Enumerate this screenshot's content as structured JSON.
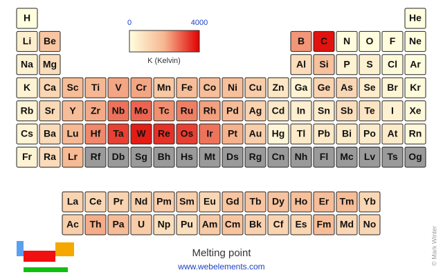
{
  "chart_data": {
    "type": "periodic-heatmap",
    "title": "Melting point",
    "subtitle": "www.webelements.com",
    "credit": "© Mark Winter",
    "colorbar": {
      "lim": [
        0,
        4000
      ],
      "ticks": [
        0,
        4000
      ],
      "label": "K (Kelvin)",
      "colors": [
        "#ffffe0",
        "#f6b690",
        "#e00000"
      ]
    },
    "missing_color": "#9a9a9a",
    "symbols": [
      "H",
      "He",
      "Li",
      "Be",
      "B",
      "C",
      "N",
      "O",
      "F",
      "Ne",
      "Na",
      "Mg",
      "Al",
      "Si",
      "P",
      "S",
      "Cl",
      "Ar",
      "K",
      "Ca",
      "Sc",
      "Ti",
      "V",
      "Cr",
      "Mn",
      "Fe",
      "Co",
      "Ni",
      "Cu",
      "Zn",
      "Ga",
      "Ge",
      "As",
      "Se",
      "Br",
      "Kr",
      "Rb",
      "Sr",
      "Y",
      "Zr",
      "Nb",
      "Mo",
      "Tc",
      "Ru",
      "Rh",
      "Pd",
      "Ag",
      "Cd",
      "In",
      "Sn",
      "Sb",
      "Te",
      "I",
      "Xe",
      "Cs",
      "Ba",
      "La",
      "Ce",
      "Pr",
      "Nd",
      "Pm",
      "Sm",
      "Eu",
      "Gd",
      "Tb",
      "Dy",
      "Ho",
      "Er",
      "Tm",
      "Yb",
      "Lu",
      "Hf",
      "Ta",
      "W",
      "Re",
      "Os",
      "Ir",
      "Pt",
      "Au",
      "Hg",
      "Tl",
      "Pb",
      "Bi",
      "Po",
      "At",
      "Rn",
      "Fr",
      "Ra",
      "Ac",
      "Th",
      "Pa",
      "U",
      "Np",
      "Pu",
      "Am",
      "Cm",
      "Bk",
      "Cf",
      "Es",
      "Fm",
      "Md",
      "No",
      "Lr",
      "Rf",
      "Db",
      "Sg",
      "Bh",
      "Hs",
      "Mt",
      "Ds",
      "Rg",
      "Cn",
      "Nh",
      "Fl",
      "Mc",
      "Lv",
      "Ts",
      "Og"
    ],
    "values": [
      14,
      1,
      454,
      1560,
      2349,
      3800,
      63,
      54,
      53,
      25,
      371,
      923,
      933,
      1687,
      317,
      388,
      172,
      84,
      337,
      1115,
      1814,
      1941,
      2183,
      2180,
      1519,
      1811,
      1768,
      1728,
      1358,
      693,
      303,
      1211,
      1090,
      494,
      266,
      116,
      312,
      1050,
      1799,
      2128,
      2750,
      2896,
      2430,
      2607,
      2237,
      1828,
      1235,
      594,
      430,
      505,
      904,
      723,
      387,
      161,
      302,
      1000,
      1193,
      1068,
      1208,
      1297,
      1373,
      1345,
      1099,
      1585,
      1629,
      1680,
      1734,
      1802,
      1818,
      1097,
      1925,
      2506,
      3290,
      3695,
      3459,
      3306,
      2739,
      2041,
      1337,
      234,
      577,
      601,
      544,
      527,
      575,
      202,
      300,
      973,
      1323,
      2115,
      1841,
      1405,
      917,
      913,
      1449,
      1613,
      1259,
      1173,
      1133,
      1800,
      1100,
      1100,
      1900,
      null,
      null,
      null,
      null,
      null,
      null,
      null,
      null,
      null,
      null,
      null,
      null,
      null,
      null,
      null
    ]
  }
}
